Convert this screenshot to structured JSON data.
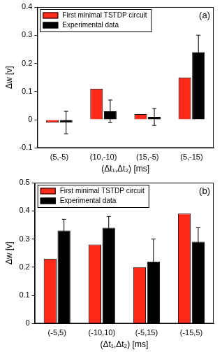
{
  "chart_data": [
    {
      "type": "bar",
      "annotation": "(a)",
      "x_label": "(Δt₁,Δt₂) [ms]",
      "y_label": "Δw [v]",
      "categories": [
        "(5,-5)",
        "(10,-10)",
        "(15,-5)",
        "(5,-15)"
      ],
      "series": [
        {
          "name": "First minimal TSTDP circuit",
          "color": "#ff2a1a",
          "values": [
            -0.01,
            0.11,
            0.02,
            0.15
          ]
        },
        {
          "name": "Experimental data",
          "color": "#000000",
          "values": [
            -0.01,
            0.03,
            0.01,
            0.24
          ],
          "errors": [
            0.04,
            0.04,
            0.03,
            0.06
          ]
        }
      ],
      "ylim": [
        -0.1,
        0.4
      ],
      "yticks": [
        -0.1,
        0,
        0.1,
        0.2,
        0.3,
        0.4
      ],
      "grid": false,
      "legend": "top-left"
    },
    {
      "type": "bar",
      "annotation": "(b)",
      "x_label": "(Δt₁,Δt₂) [ms]",
      "y_label": "Δw [v]",
      "categories": [
        "(-5,5)",
        "(-10,10)",
        "(-5,15)",
        "(-15,5)"
      ],
      "series": [
        {
          "name": "First minimal TSTDP circuit",
          "color": "#ff2a1a",
          "values": [
            0.23,
            0.28,
            0.2,
            0.39
          ]
        },
        {
          "name": "Experimental data",
          "color": "#000000",
          "values": [
            0.33,
            0.34,
            0.22,
            0.29
          ],
          "errors": [
            0.04,
            0.04,
            0.08,
            0.05
          ]
        }
      ],
      "ylim": [
        0,
        0.5
      ],
      "yticks": [
        0,
        0.1,
        0.2,
        0.3,
        0.4,
        0.5
      ],
      "grid": false,
      "legend": "top-left"
    }
  ]
}
